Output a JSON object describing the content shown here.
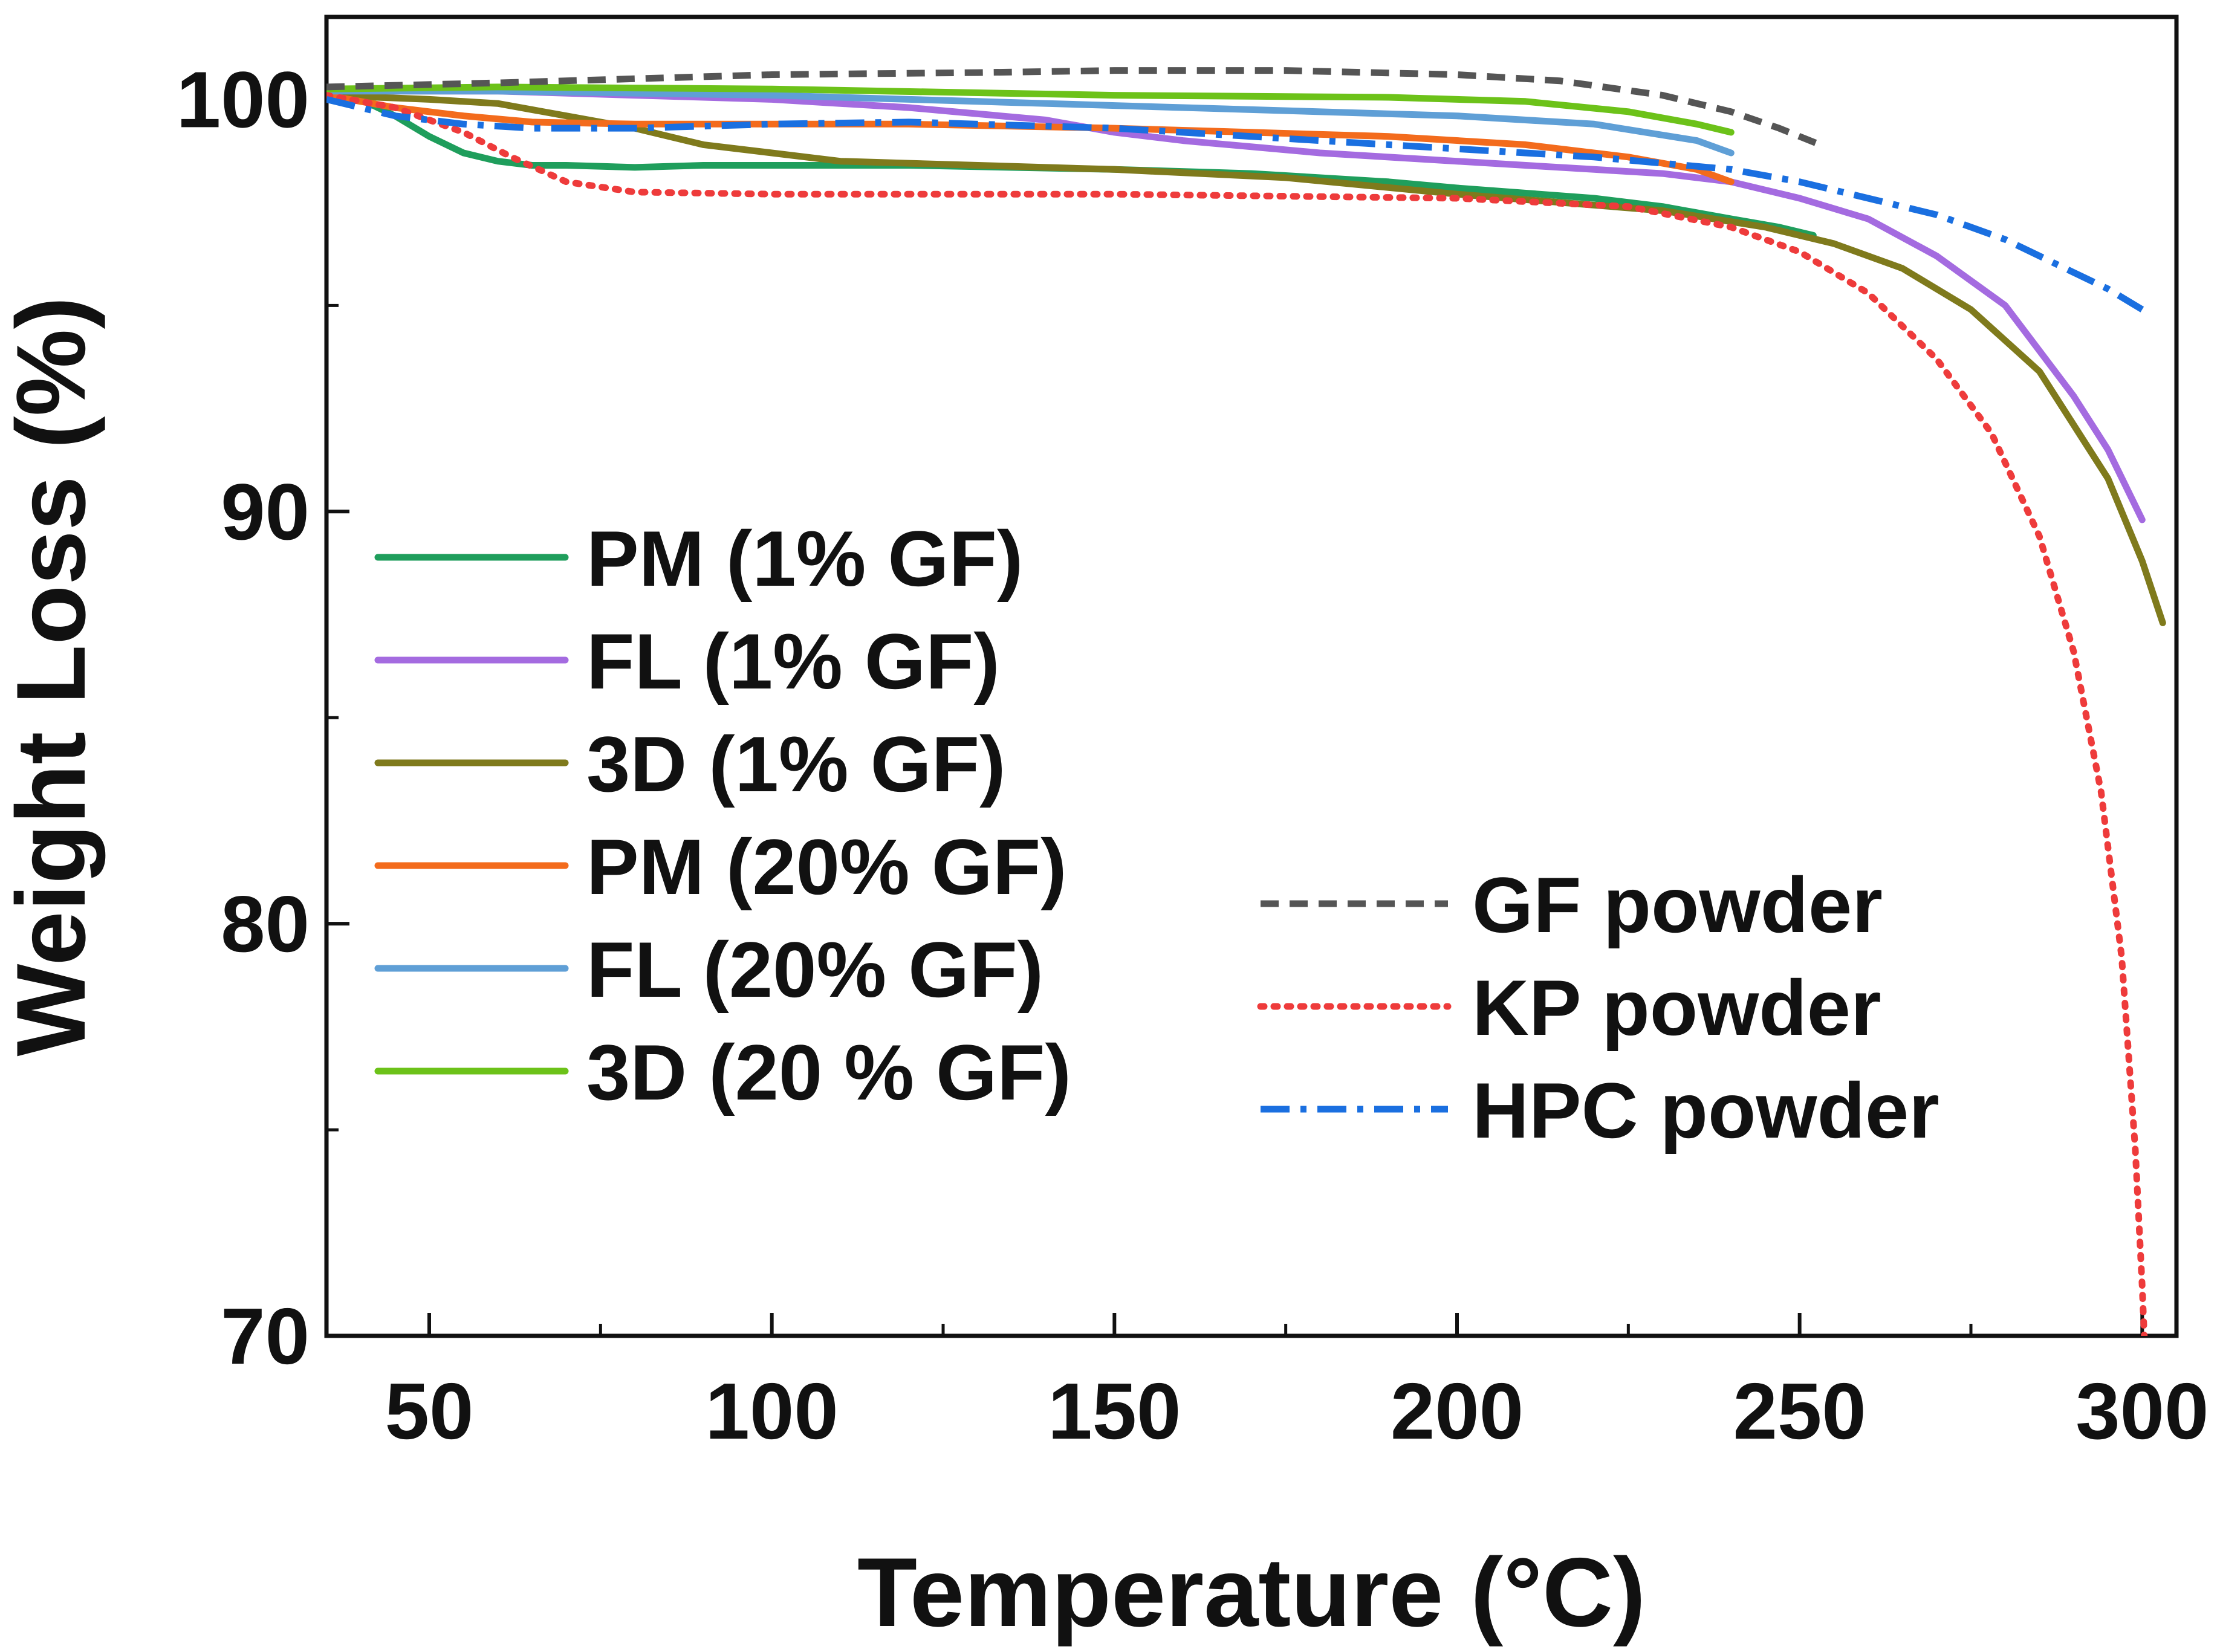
{
  "chart_data": {
    "type": "line",
    "title": "",
    "xlabel": "Temperature (°C)",
    "ylabel": "Weight Loss (%)",
    "xlim": [
      35,
      305
    ],
    "ylim": [
      70,
      102
    ],
    "xticks": [
      50,
      100,
      150,
      200,
      250,
      300
    ],
    "xtick_labels": [
      "50",
      "100",
      "150",
      "200",
      "250",
      "300"
    ],
    "yticks": [
      70,
      80,
      90,
      100
    ],
    "ytick_labels": [
      "70",
      "80",
      "90",
      "100"
    ],
    "x_minor_ticks": [
      75,
      125,
      175,
      225,
      275
    ],
    "y_minor_ticks": [
      75,
      85,
      95
    ],
    "grid": false,
    "legend_left_position": "center-left",
    "legend_right_position": "center-right",
    "series": [
      {
        "name": "PM (1% GF)",
        "color": "#1f9e5c",
        "dash": "solid",
        "legend_group": "left",
        "points": [
          [
            35,
            100.2
          ],
          [
            40,
            100.0
          ],
          [
            45,
            99.6
          ],
          [
            50,
            99.1
          ],
          [
            55,
            98.7
          ],
          [
            60,
            98.5
          ],
          [
            65,
            98.4
          ],
          [
            70,
            98.4
          ],
          [
            80,
            98.35
          ],
          [
            90,
            98.4
          ],
          [
            100,
            98.4
          ],
          [
            120,
            98.4
          ],
          [
            150,
            98.3
          ],
          [
            170,
            98.2
          ],
          [
            190,
            98.0
          ],
          [
            200,
            97.85
          ],
          [
            220,
            97.6
          ],
          [
            230,
            97.4
          ],
          [
            240,
            97.1
          ],
          [
            247,
            96.9
          ],
          [
            252,
            96.7
          ]
        ]
      },
      {
        "name": "FL (1% GF)",
        "color": "#a46be0",
        "dash": "solid",
        "legend_group": "left",
        "points": [
          [
            35,
            100.2
          ],
          [
            60,
            100.2
          ],
          [
            80,
            100.1
          ],
          [
            100,
            100.0
          ],
          [
            120,
            99.8
          ],
          [
            140,
            99.5
          ],
          [
            150,
            99.2
          ],
          [
            160,
            99.0
          ],
          [
            180,
            98.7
          ],
          [
            200,
            98.5
          ],
          [
            220,
            98.3
          ],
          [
            230,
            98.2
          ],
          [
            240,
            98.0
          ],
          [
            250,
            97.6
          ],
          [
            260,
            97.1
          ],
          [
            270,
            96.2
          ],
          [
            280,
            95.0
          ],
          [
            290,
            92.8
          ],
          [
            295,
            91.5
          ],
          [
            300,
            89.8
          ]
        ]
      },
      {
        "name": "3D (1% GF)",
        "color": "#7f7a1c",
        "dash": "solid",
        "legend_group": "left",
        "points": [
          [
            35,
            100.1
          ],
          [
            50,
            100.0
          ],
          [
            60,
            99.9
          ],
          [
            70,
            99.6
          ],
          [
            80,
            99.3
          ],
          [
            90,
            98.9
          ],
          [
            100,
            98.7
          ],
          [
            110,
            98.5
          ],
          [
            120,
            98.45
          ],
          [
            150,
            98.3
          ],
          [
            175,
            98.1
          ],
          [
            200,
            97.7
          ],
          [
            230,
            97.3
          ],
          [
            245,
            96.9
          ],
          [
            255,
            96.5
          ],
          [
            265,
            95.9
          ],
          [
            275,
            94.9
          ],
          [
            285,
            93.4
          ],
          [
            295,
            90.8
          ],
          [
            300,
            88.8
          ],
          [
            303,
            87.3
          ]
        ]
      },
      {
        "name": "PM (20% GF)",
        "color": "#f36b1c",
        "dash": "solid",
        "legend_group": "left",
        "points": [
          [
            35,
            100.1
          ],
          [
            45,
            99.8
          ],
          [
            55,
            99.6
          ],
          [
            65,
            99.45
          ],
          [
            80,
            99.4
          ],
          [
            100,
            99.4
          ],
          [
            120,
            99.4
          ],
          [
            150,
            99.3
          ],
          [
            170,
            99.2
          ],
          [
            190,
            99.1
          ],
          [
            210,
            98.9
          ],
          [
            225,
            98.6
          ],
          [
            235,
            98.3
          ],
          [
            240,
            98.0
          ]
        ]
      },
      {
        "name": "FL (20% GF)",
        "color": "#5f9fd6",
        "dash": "solid",
        "legend_group": "left",
        "points": [
          [
            35,
            100.2
          ],
          [
            60,
            100.2
          ],
          [
            100,
            100.1
          ],
          [
            130,
            99.95
          ],
          [
            160,
            99.8
          ],
          [
            200,
            99.6
          ],
          [
            220,
            99.4
          ],
          [
            235,
            99.0
          ],
          [
            240,
            98.7
          ]
        ]
      },
      {
        "name": "3D (20 % GF)",
        "color": "#6cc219",
        "dash": "solid",
        "legend_group": "left",
        "points": [
          [
            35,
            100.25
          ],
          [
            60,
            100.3
          ],
          [
            100,
            100.25
          ],
          [
            150,
            100.1
          ],
          [
            190,
            100.05
          ],
          [
            210,
            99.95
          ],
          [
            225,
            99.7
          ],
          [
            235,
            99.4
          ],
          [
            240,
            99.2
          ]
        ]
      },
      {
        "name": "GF powder",
        "color": "#555555",
        "dash": "dash",
        "legend_group": "right",
        "points": [
          [
            35,
            100.3
          ],
          [
            60,
            100.4
          ],
          [
            80,
            100.5
          ],
          [
            100,
            100.6
          ],
          [
            130,
            100.65
          ],
          [
            150,
            100.7
          ],
          [
            175,
            100.7
          ],
          [
            200,
            100.6
          ],
          [
            215,
            100.45
          ],
          [
            230,
            100.1
          ],
          [
            240,
            99.7
          ],
          [
            247,
            99.3
          ],
          [
            253,
            98.9
          ]
        ]
      },
      {
        "name": "KP powder",
        "color": "#ee3b3b",
        "dash": "dot",
        "legend_group": "right",
        "points": [
          [
            35,
            100.1
          ],
          [
            45,
            99.8
          ],
          [
            55,
            99.2
          ],
          [
            62,
            98.6
          ],
          [
            70,
            98.0
          ],
          [
            80,
            97.75
          ],
          [
            100,
            97.7
          ],
          [
            150,
            97.7
          ],
          [
            200,
            97.6
          ],
          [
            225,
            97.4
          ],
          [
            240,
            96.9
          ],
          [
            250,
            96.3
          ],
          [
            260,
            95.3
          ],
          [
            270,
            93.7
          ],
          [
            278,
            91.9
          ],
          [
            285,
            89.4
          ],
          [
            290,
            86.6
          ],
          [
            294,
            83.2
          ],
          [
            297,
            79.2
          ],
          [
            299,
            74.5
          ],
          [
            300,
            71.2
          ],
          [
            300.3,
            70.0
          ]
        ]
      },
      {
        "name": "HPC powder",
        "color": "#1a6fe0",
        "dash": "dashdot",
        "legend_group": "right",
        "points": [
          [
            35,
            100.0
          ],
          [
            45,
            99.6
          ],
          [
            55,
            99.4
          ],
          [
            65,
            99.3
          ],
          [
            80,
            99.3
          ],
          [
            100,
            99.4
          ],
          [
            120,
            99.45
          ],
          [
            150,
            99.3
          ],
          [
            180,
            99.0
          ],
          [
            200,
            98.8
          ],
          [
            220,
            98.6
          ],
          [
            240,
            98.3
          ],
          [
            250,
            98.0
          ],
          [
            260,
            97.6
          ],
          [
            270,
            97.2
          ],
          [
            280,
            96.6
          ],
          [
            290,
            95.8
          ],
          [
            295,
            95.4
          ],
          [
            300,
            94.9
          ]
        ]
      }
    ]
  }
}
